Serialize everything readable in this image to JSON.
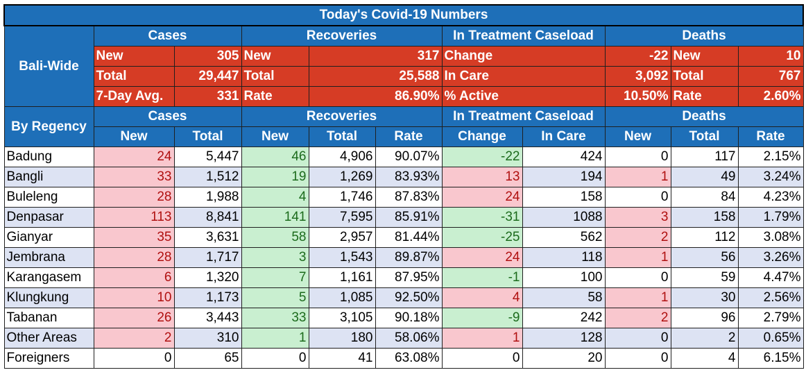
{
  "title": "Today's Covid-19 Numbers",
  "bali_label": "Bali-Wide",
  "regency_label": "By Regency",
  "groups": [
    "Cases",
    "Recoveries",
    "In Treatment Caseload",
    "Deaths"
  ],
  "subheaders": [
    "New",
    "Total",
    "New",
    "Total",
    "Rate",
    "Change",
    "In Care",
    "New",
    "Total",
    "Rate"
  ],
  "summary": [
    [
      "New",
      "305",
      "New",
      "317",
      "Change",
      "-22",
      "New",
      "10"
    ],
    [
      "Total",
      "29,447",
      "Total",
      "25,588",
      "In Care",
      "3,092",
      "Total",
      "767"
    ],
    [
      "7-Day Avg.",
      "331",
      "Rate",
      "86.90%",
      "% Active",
      "10.50%",
      "Rate",
      "2.60%"
    ]
  ],
  "rows": [
    {
      "name": "Badung",
      "v": [
        "24",
        "5,447",
        "46",
        "4,906",
        "90.07%",
        "-22",
        "424",
        "0",
        "117",
        "2.15%"
      ]
    },
    {
      "name": "Bangli",
      "v": [
        "33",
        "1,512",
        "19",
        "1,269",
        "83.93%",
        "13",
        "194",
        "1",
        "49",
        "3.24%"
      ]
    },
    {
      "name": "Buleleng",
      "v": [
        "28",
        "1,988",
        "4",
        "1,746",
        "87.83%",
        "24",
        "158",
        "0",
        "84",
        "4.23%"
      ]
    },
    {
      "name": "Denpasar",
      "v": [
        "113",
        "8,841",
        "141",
        "7,595",
        "85.91%",
        "-31",
        "1088",
        "3",
        "158",
        "1.79%"
      ]
    },
    {
      "name": "Gianyar",
      "v": [
        "35",
        "3,631",
        "58",
        "2,957",
        "81.44%",
        "-25",
        "562",
        "2",
        "112",
        "3.08%"
      ]
    },
    {
      "name": "Jembrana",
      "v": [
        "28",
        "1,717",
        "3",
        "1,543",
        "89.87%",
        "24",
        "118",
        "1",
        "56",
        "3.26%"
      ]
    },
    {
      "name": "Karangasem",
      "v": [
        "6",
        "1,320",
        "7",
        "1,161",
        "87.95%",
        "-1",
        "100",
        "0",
        "59",
        "4.47%"
      ]
    },
    {
      "name": "Klungkung",
      "v": [
        "10",
        "1,173",
        "5",
        "1,085",
        "92.50%",
        "4",
        "58",
        "1",
        "30",
        "2.56%"
      ]
    },
    {
      "name": "Tabanan",
      "v": [
        "26",
        "3,443",
        "33",
        "3,105",
        "90.18%",
        "-9",
        "242",
        "2",
        "96",
        "2.79%"
      ]
    },
    {
      "name": "Other Areas",
      "v": [
        "2",
        "310",
        "1",
        "180",
        "58.06%",
        "1",
        "128",
        "0",
        "2",
        "0.65%"
      ]
    },
    {
      "name": "Foreigners",
      "v": [
        "0",
        "65",
        "0",
        "41",
        "63.08%",
        "0",
        "20",
        "0",
        "4",
        "6.15%"
      ]
    }
  ]
}
